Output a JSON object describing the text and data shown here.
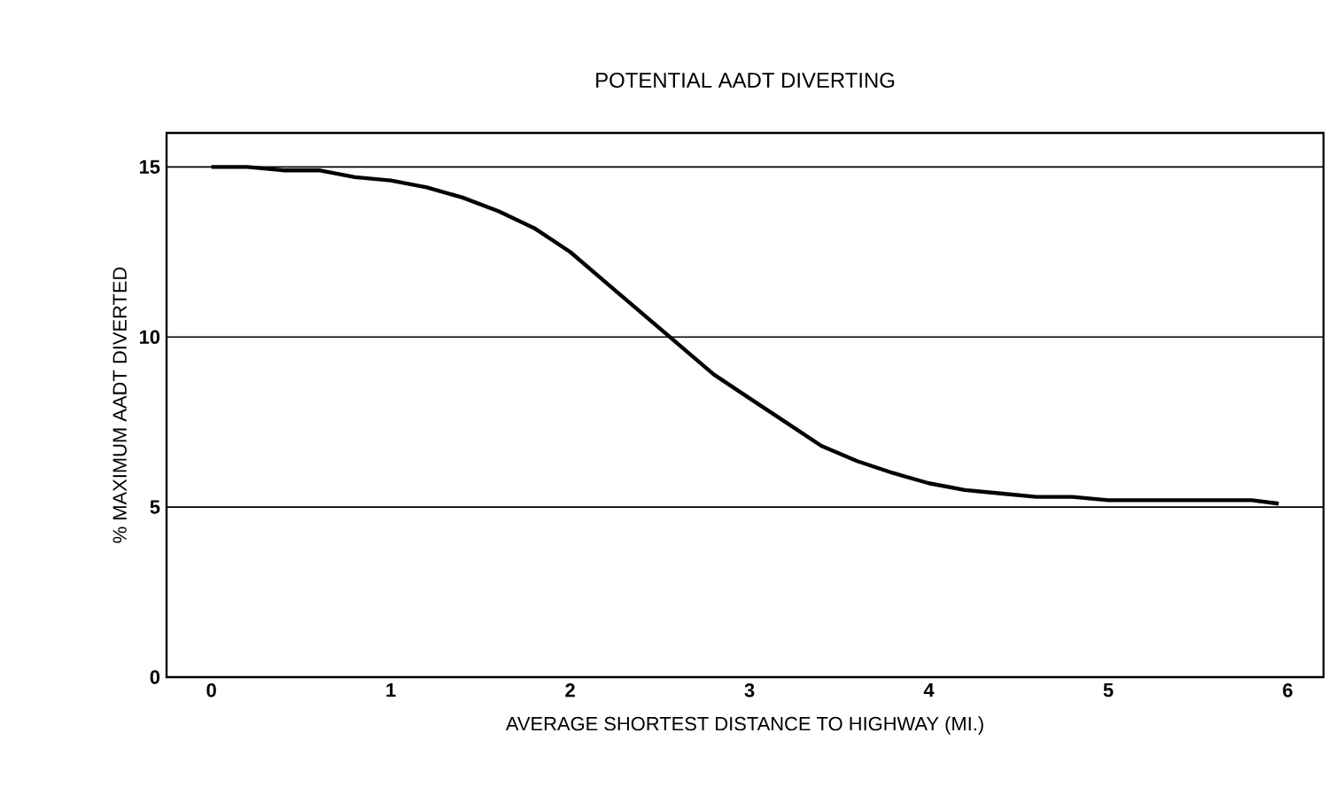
{
  "chart_data": {
    "type": "line",
    "title": "POTENTIAL AADT DIVERTING",
    "xlabel": "AVERAGE SHORTEST DISTANCE TO HIGHWAY (MI.)",
    "ylabel": "% MAXIMUM AADT DIVERTED",
    "x": [
      0,
      0.2,
      0.4,
      0.6,
      0.8,
      1.0,
      1.2,
      1.4,
      1.6,
      1.8,
      2.0,
      2.2,
      2.4,
      2.6,
      2.8,
      3.0,
      3.2,
      3.4,
      3.6,
      3.8,
      4.0,
      4.2,
      4.4,
      4.6,
      4.8,
      5.0,
      5.2,
      5.4,
      5.6,
      5.8,
      5.95
    ],
    "series": [
      {
        "color": "#000000",
        "values": [
          15,
          15,
          14.9,
          14.9,
          14.7,
          14.6,
          14.4,
          14.1,
          13.7,
          13.2,
          12.5,
          11.6,
          10.7,
          9.8,
          8.9,
          8.2,
          7.5,
          6.8,
          6.35,
          6.0,
          5.7,
          5.5,
          5.4,
          5.3,
          5.3,
          5.2,
          5.2,
          5.2,
          5.2,
          5.2,
          5.1
        ]
      }
    ],
    "xlim": [
      -0.25,
      6.2
    ],
    "ylim": [
      0,
      16
    ],
    "xticks": [
      0,
      1,
      2,
      3,
      4,
      5,
      6
    ],
    "yticks": [
      0,
      5,
      10,
      15
    ],
    "grid": "y",
    "marker": "none",
    "line_style": "solid"
  }
}
